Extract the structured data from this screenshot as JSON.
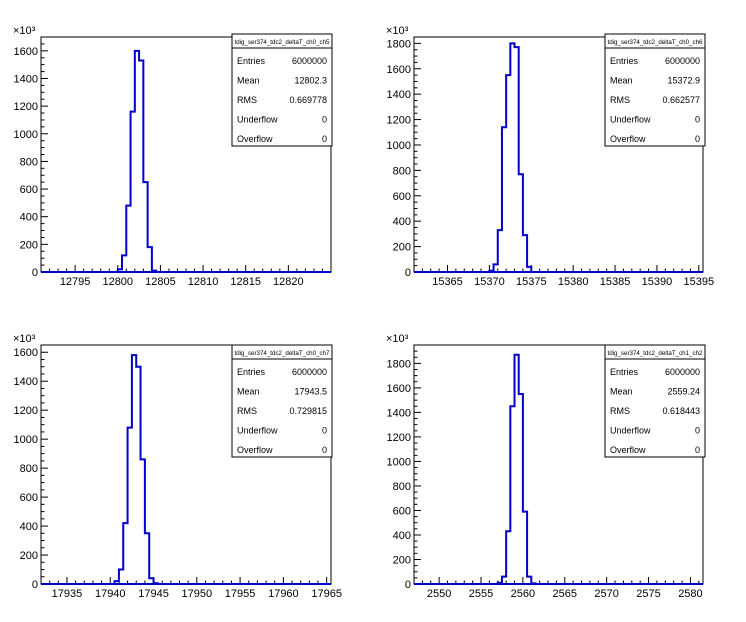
{
  "colors": {
    "line": "#0000cc",
    "axis": "#000000",
    "background": "#ffffff"
  },
  "chart_data": [
    {
      "type": "histogram",
      "title": "tdig_ser374_tdc2_deltaT_ch0_ch5",
      "exponent_label": "×10³",
      "stats": [
        {
          "label": "Entries",
          "value": "6000000"
        },
        {
          "label": "Mean",
          "value": "12802.3"
        },
        {
          "label": "RMS",
          "value": "0.669778"
        },
        {
          "label": "Underflow",
          "value": "0"
        },
        {
          "label": "Overflow",
          "value": "0"
        }
      ],
      "xlim": [
        12791,
        12825
      ],
      "ylim": [
        0,
        1700
      ],
      "xticks": [
        12795,
        12800,
        12805,
        12810,
        12815,
        12820
      ],
      "yticks": [
        0,
        200,
        400,
        600,
        800,
        1000,
        1200,
        1400,
        1600
      ],
      "bin_width": 0.5,
      "x": [
        12799.5,
        12800,
        12800.5,
        12801,
        12801.5,
        12802,
        12802.5,
        12803,
        12803.5,
        12804
      ],
      "values": [
        0,
        20,
        120,
        480,
        1160,
        1600,
        1530,
        650,
        180,
        10
      ]
    },
    {
      "type": "histogram",
      "title": "tdig_ser374_tdc2_deltaT_ch0_ch6",
      "exponent_label": "×10³",
      "stats": [
        {
          "label": "Entries",
          "value": "6000000"
        },
        {
          "label": "Mean",
          "value": "15372.9"
        },
        {
          "label": "RMS",
          "value": "0.662577"
        },
        {
          "label": "Underflow",
          "value": "0"
        },
        {
          "label": "Overflow",
          "value": "0"
        }
      ],
      "xlim": [
        15361,
        15395.5
      ],
      "ylim": [
        0,
        1850
      ],
      "xticks": [
        15365,
        15370,
        15375,
        15380,
        15385,
        15390,
        15395
      ],
      "yticks": [
        0,
        200,
        400,
        600,
        800,
        1000,
        1200,
        1400,
        1600,
        1800
      ],
      "bin_width": 0.5,
      "x": [
        15370,
        15370.5,
        15371,
        15371.5,
        15372,
        15372.5,
        15373,
        15373.5,
        15374,
        15374.5
      ],
      "values": [
        10,
        60,
        330,
        1140,
        1550,
        1800,
        1770,
        770,
        290,
        40
      ]
    },
    {
      "type": "histogram",
      "title": "tdig_ser374_tdc2_deltaT_ch0_ch7",
      "exponent_label": "×10³",
      "stats": [
        {
          "label": "Entries",
          "value": "6000000"
        },
        {
          "label": "Mean",
          "value": "17943.5"
        },
        {
          "label": "RMS",
          "value": "0.729815"
        },
        {
          "label": "Underflow",
          "value": "0"
        },
        {
          "label": "Overflow",
          "value": "0"
        }
      ],
      "xlim": [
        17932,
        17965.5
      ],
      "ylim": [
        0,
        1650
      ],
      "xticks": [
        17935,
        17940,
        17945,
        17950,
        17955,
        17960,
        17965
      ],
      "yticks": [
        0,
        200,
        400,
        600,
        800,
        1000,
        1200,
        1400,
        1600
      ],
      "bin_width": 0.5,
      "x": [
        17940.5,
        17941,
        17941.5,
        17942,
        17942.5,
        17943,
        17943.5,
        17944,
        17944.5,
        17945
      ],
      "values": [
        20,
        100,
        420,
        1080,
        1580,
        1500,
        860,
        350,
        40,
        5
      ]
    },
    {
      "type": "histogram",
      "title": "tdig_ser374_tdc2_deltaT_ch1_ch2",
      "exponent_label": "×10³",
      "stats": [
        {
          "label": "Entries",
          "value": "6000000"
        },
        {
          "label": "Mean",
          "value": "2559.24"
        },
        {
          "label": "RMS",
          "value": "0.618443"
        },
        {
          "label": "Underflow",
          "value": "0"
        },
        {
          "label": "Overflow",
          "value": "0"
        }
      ],
      "xlim": [
        2547,
        2581.5
      ],
      "ylim": [
        0,
        1950
      ],
      "xticks": [
        2550,
        2555,
        2560,
        2565,
        2570,
        2575,
        2580
      ],
      "yticks": [
        0,
        200,
        400,
        600,
        800,
        1000,
        1200,
        1400,
        1600,
        1800
      ],
      "bin_width": 0.5,
      "x": [
        2557,
        2557.5,
        2558,
        2558.5,
        2559,
        2559.5,
        2560,
        2560.5,
        2561
      ],
      "values": [
        10,
        60,
        430,
        1450,
        1870,
        1550,
        590,
        60,
        5
      ]
    }
  ]
}
